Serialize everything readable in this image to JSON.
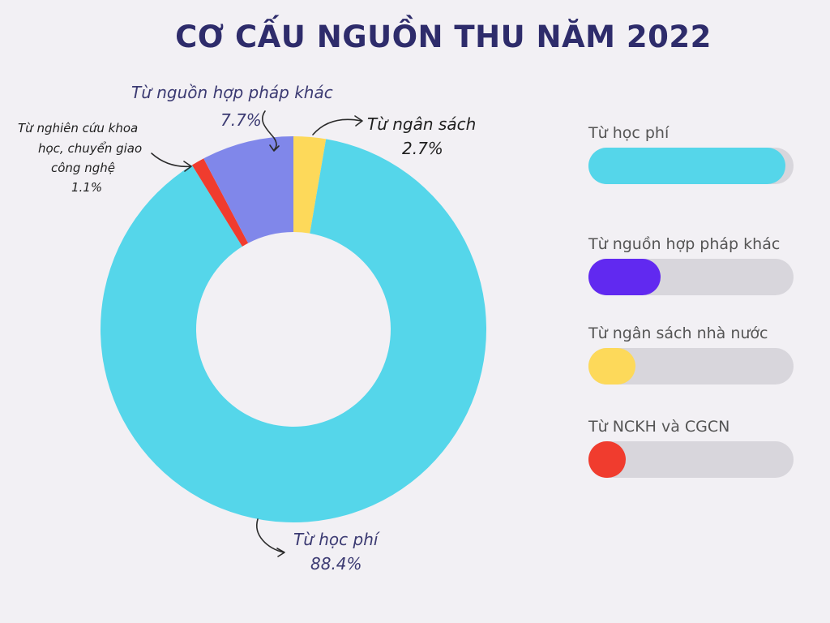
{
  "chart_data": {
    "type": "pie",
    "title": "CƠ CẤU NGUỒN THU NĂM 2022",
    "slices": [
      {
        "label": "Từ ngân sách",
        "value_label": "2.7%",
        "value": 2.7,
        "color": "#fdd95a"
      },
      {
        "label": "Từ học phí",
        "value_label": "88.4%",
        "value": 88.4,
        "color": "#55d6ea"
      },
      {
        "label": "Từ nghiên cứu khoa học, chuyển giao công nghệ",
        "value_label": "1.1%",
        "value": 1.1,
        "color": "#f03c2e"
      },
      {
        "label": "Từ nguồn hợp pháp khác",
        "value_label": "7.7%",
        "value": 7.7,
        "color": "#8087ea"
      }
    ],
    "donut": true,
    "labels": {
      "ngan_sach": {
        "line1": "Từ ngân sách",
        "pct": "2.7%"
      },
      "hoc_phi": {
        "line1": "Từ học phí",
        "pct": "88.4%"
      },
      "nckh": {
        "line1": "Từ nghiên cứu khoa",
        "line2": "học, chuyển giao",
        "line3": "công nghệ",
        "pct": "1.1%"
      },
      "hop_phap": {
        "line1": "Từ nguồn hợp pháp khác",
        "pct": "7.7%"
      }
    }
  },
  "legend": {
    "items": [
      {
        "label": "Từ học phí",
        "fraction": 0.96,
        "color": "#55d6ea"
      },
      {
        "label": "Từ nguồn hợp pháp khác",
        "fraction": 0.35,
        "color": "#6129f0"
      },
      {
        "label": "Từ ngân sách nhà nước",
        "fraction": 0.23,
        "color": "#fdd95a"
      },
      {
        "label": " Từ NCKH và CGCN",
        "fraction": 0.18,
        "color": "#f03c2e"
      }
    ]
  }
}
